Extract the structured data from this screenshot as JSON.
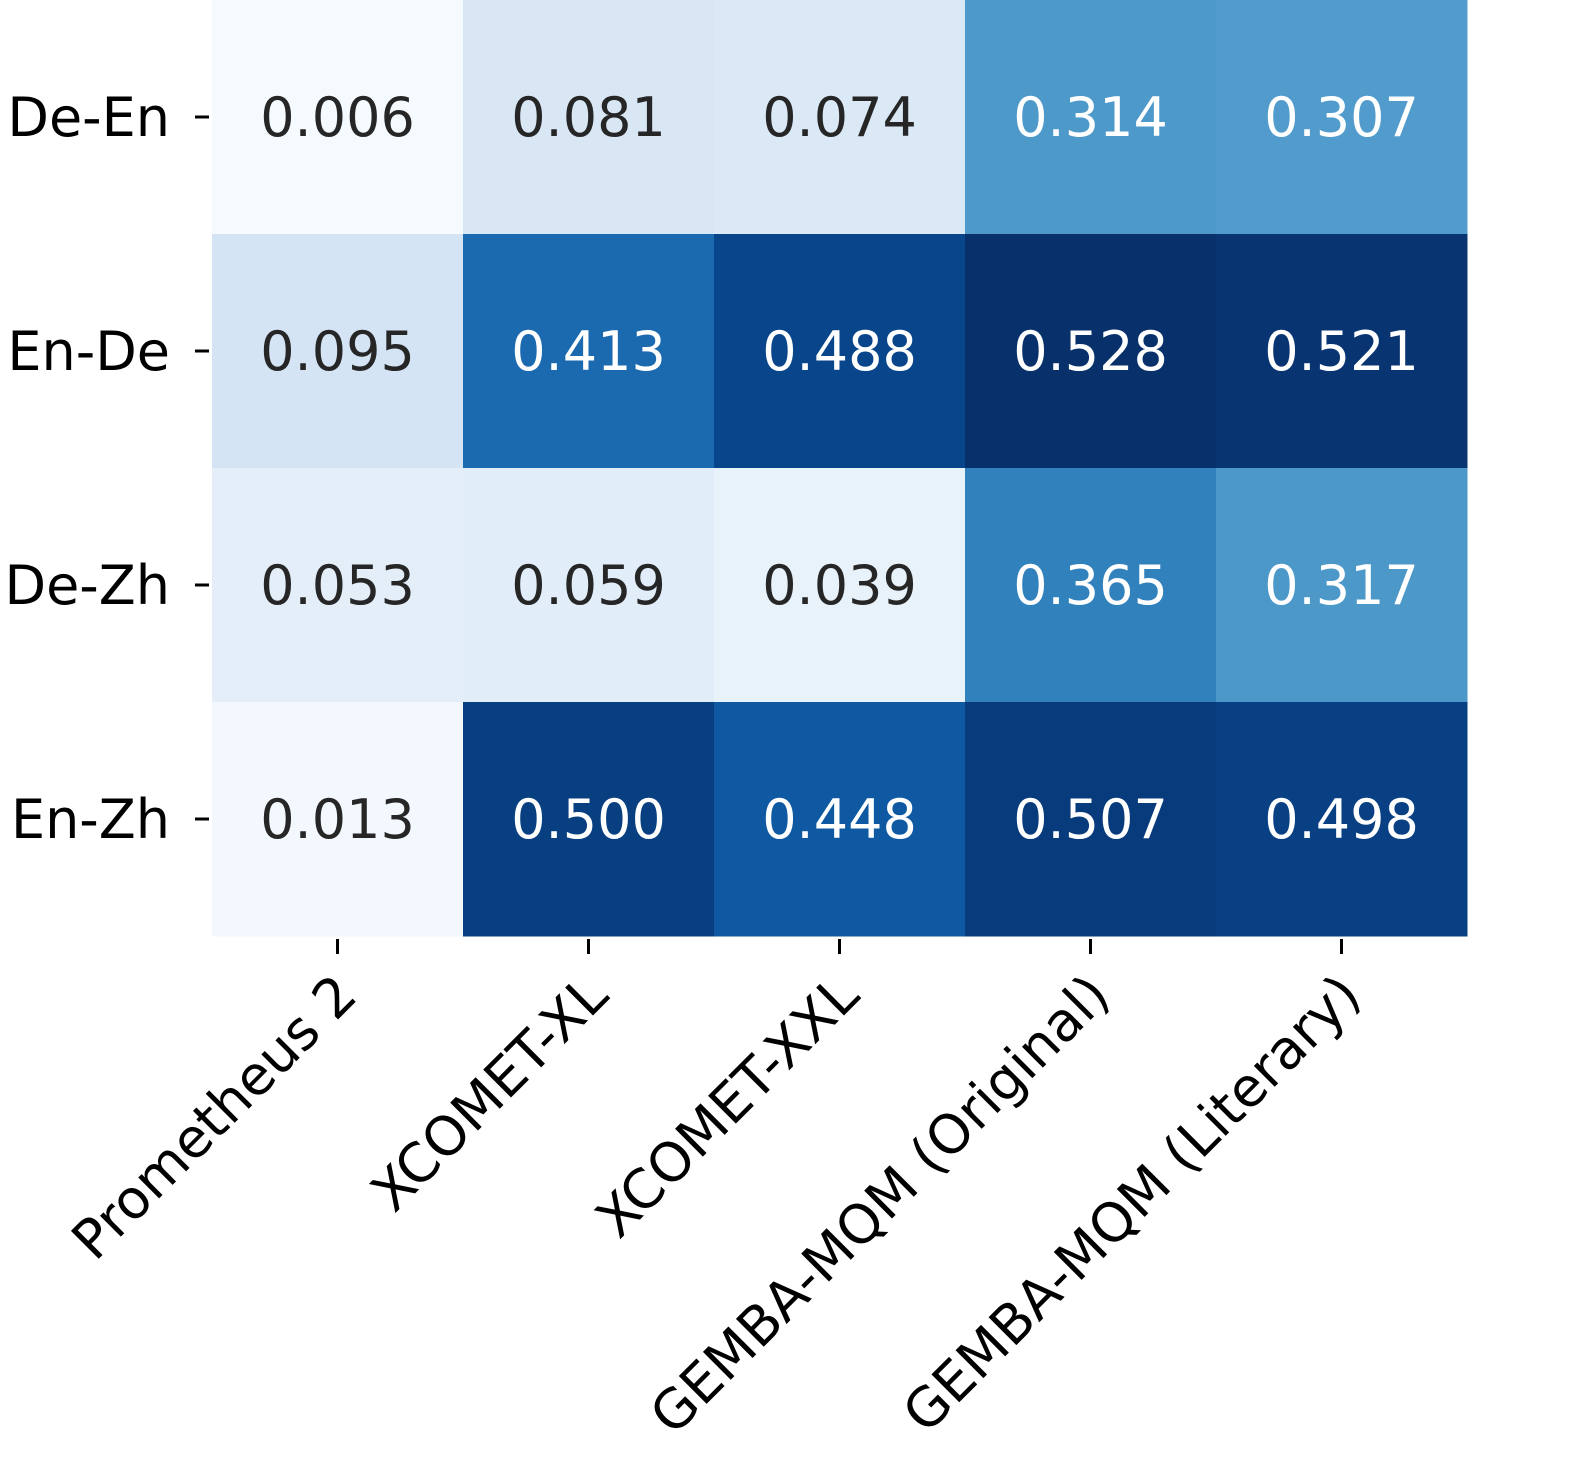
{
  "chart_data": {
    "type": "heatmap",
    "title": "",
    "xlabel": "",
    "ylabel": "",
    "rows": [
      "De-En",
      "En-De",
      "De-Zh",
      "En-Zh"
    ],
    "columns": [
      "Prometheus 2",
      "XCOMET-XL",
      "XCOMET-XXL",
      "GEMBA-MQM (Original)",
      "GEMBA-MQM (Literary)"
    ],
    "values": [
      [
        0.006,
        0.081,
        0.074,
        0.314,
        0.307
      ],
      [
        0.095,
        0.413,
        0.488,
        0.528,
        0.521
      ],
      [
        0.053,
        0.059,
        0.039,
        0.365,
        0.317
      ],
      [
        0.013,
        0.5,
        0.448,
        0.507,
        0.498
      ]
    ],
    "labels": [
      [
        "0.006",
        "0.081",
        "0.074",
        "0.314",
        "0.307"
      ],
      [
        "0.095",
        "0.413",
        "0.488",
        "0.528",
        "0.521"
      ],
      [
        "0.053",
        "0.059",
        "0.039",
        "0.365",
        "0.317"
      ],
      [
        "0.013",
        "0.500",
        "0.448",
        "0.507",
        "0.498"
      ]
    ],
    "colormap": "Blues",
    "vmin": 0.0,
    "vmax": 0.53,
    "colorbar": false,
    "text_color_dark": "#262626",
    "text_color_light": "#ffffff"
  }
}
